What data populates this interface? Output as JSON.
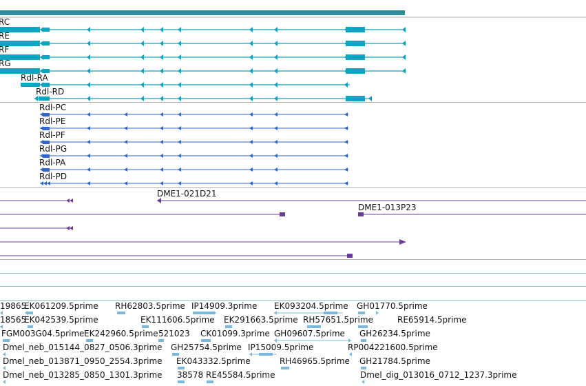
{
  "colors": {
    "scale_bar": "#2e8b9a",
    "transcript_teal": "#0aa5c0",
    "transcript_blue": "#2f66d0",
    "clone_purple": "#6a3d9a",
    "est_light_blue": "#79b7db",
    "divider_gray": "#b0b0b0",
    "divider_teal": "#8fc3cc"
  },
  "gene_models": {
    "track_a": [
      {
        "label": "RC"
      },
      {
        "label": "RE"
      },
      {
        "label": "RF"
      },
      {
        "label": "RG"
      },
      {
        "label": "Rdl-RA"
      },
      {
        "label": "Rdl-RD"
      }
    ],
    "track_b": [
      {
        "label": "Rdl-PC"
      },
      {
        "label": "Rdl-PE"
      },
      {
        "label": "Rdl-PF"
      },
      {
        "label": "Rdl-PG"
      },
      {
        "label": "Rdl-PA"
      },
      {
        "label": "Rdl-PD"
      }
    ]
  },
  "clones": {
    "labels": [
      "DME1-021D21",
      "DME1-013P23"
    ]
  },
  "ests": {
    "rows": [
      [
        "19865",
        "EK061209.5prime",
        "RH62803.5prime",
        "IP14909.3prime",
        "EK093204.5prime",
        "GH01770.5prime"
      ],
      [
        "18565",
        "EK042539.5prime",
        "EK111606.5prime",
        "EK291663.5prime",
        "RH57651.5prime",
        "RE65914.5prime"
      ],
      [
        "FGM003G04.5prime",
        "EK242960.5prime",
        "521023",
        "CK01099.3prime",
        "GH09607.5prime",
        "GH26234.5prime"
      ],
      [
        "Dmel_neb_015144_0827_0506.3prime",
        "GH25754.5prime",
        "IP15009.5prime",
        "RP004221600.5prime"
      ],
      [
        "Dmel_neb_013871_0950_2554.3prime",
        "EK043332.5prime",
        "RH46965.5prime",
        "GH21784.5prime"
      ],
      [
        "Dmel_neb_013285_0850_1301.3prime",
        "38578",
        "RE45584.5prime",
        "Dmel_dig_013016_0712_1237.3prime"
      ]
    ]
  }
}
